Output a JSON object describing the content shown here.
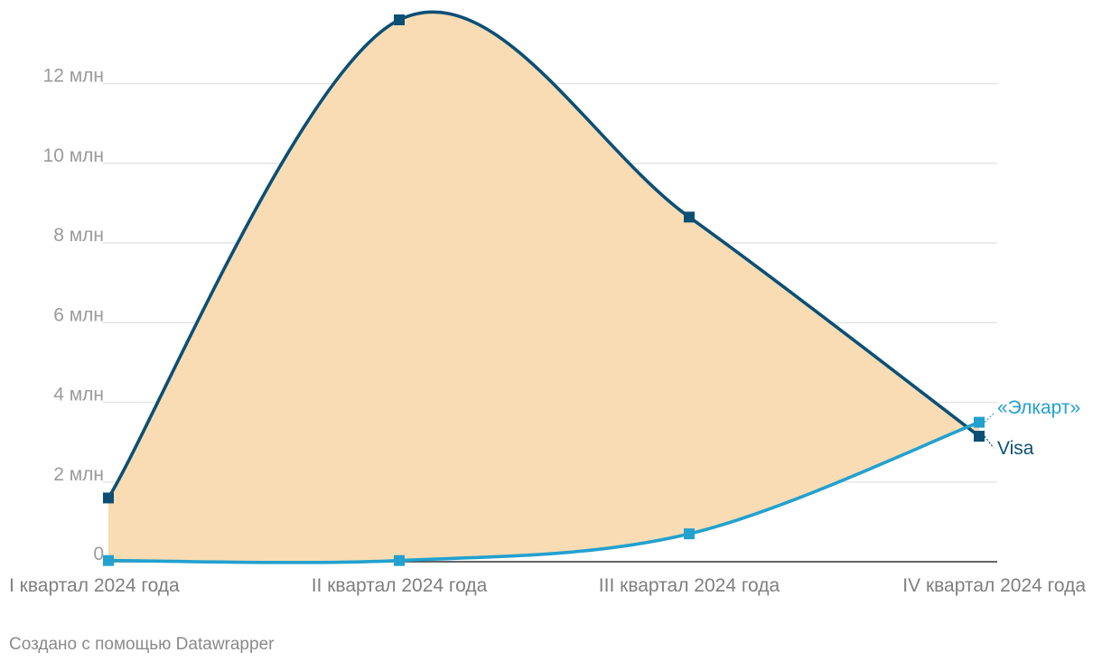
{
  "chart_data": {
    "type": "line",
    "title": "",
    "xlabel": "",
    "ylabel": "",
    "categories": [
      "I квартал 2024 года",
      "II квартал 2024 года",
      "III квартал 2024 года",
      "IV квартал 2024 года"
    ],
    "series": [
      {
        "name": "Visa",
        "values": [
          1600000,
          13600000,
          8650000,
          3150000
        ],
        "color": "#0b4f75"
      },
      {
        "name": "«Элкарт»",
        "values": [
          30000,
          30000,
          700000,
          3500000
        ],
        "color": "#22a1cf"
      }
    ],
    "area_between_series": {
      "color": "#f9dcb3"
    },
    "ylim": [
      0,
      13600000
    ],
    "yticks": [
      {
        "value": 0,
        "label": "0"
      },
      {
        "value": 2000000,
        "label": "2 млн"
      },
      {
        "value": 4000000,
        "label": "4 млн"
      },
      {
        "value": 6000000,
        "label": "6 млн"
      },
      {
        "value": 8000000,
        "label": "8 млн"
      },
      {
        "value": 10000000,
        "label": "10 млн"
      },
      {
        "value": 12000000,
        "label": "12 млн"
      }
    ],
    "grid": true,
    "legend": "inline labels at line ends"
  },
  "footer": {
    "credit": "Создано с помощью Datawrapper"
  }
}
